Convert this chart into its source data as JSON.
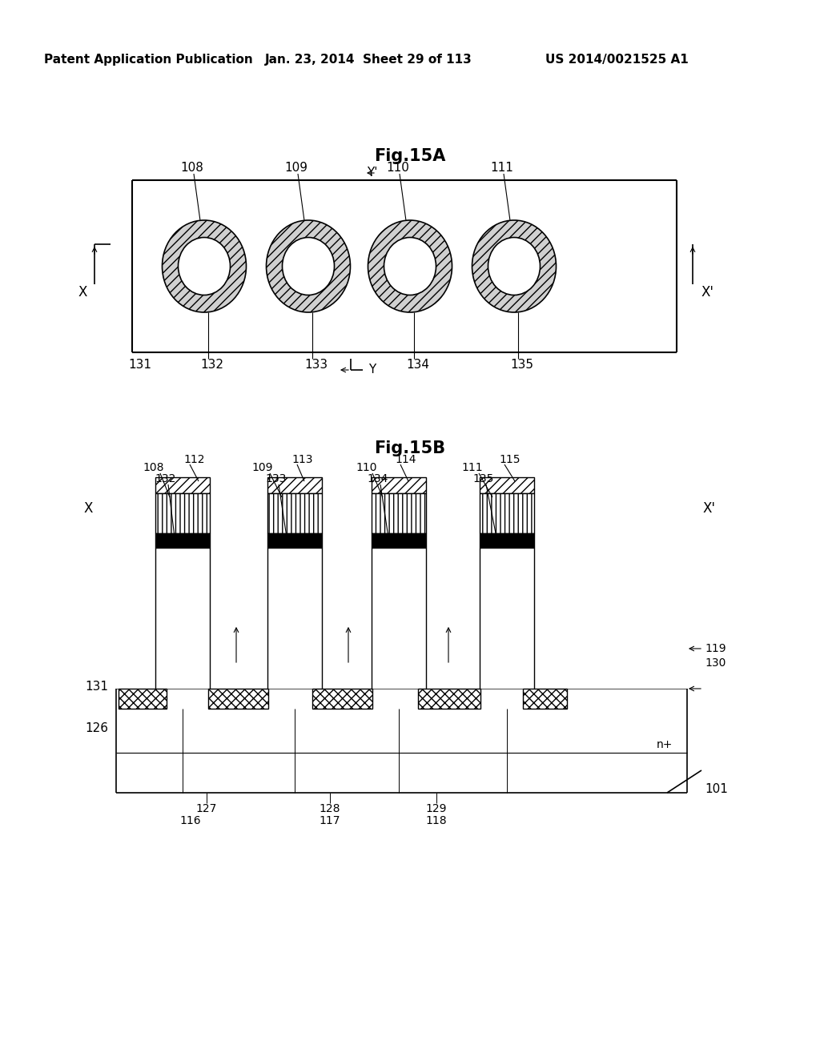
{
  "bg_color": "#ffffff",
  "header_text": "Patent Application Publication",
  "header_date": "Jan. 23, 2014  Sheet 29 of 113",
  "header_patent": "US 2014/0021525 A1",
  "fig15A_title": "Fig.15A",
  "fig15B_title": "Fig.15B",
  "nplus_label": "n+"
}
